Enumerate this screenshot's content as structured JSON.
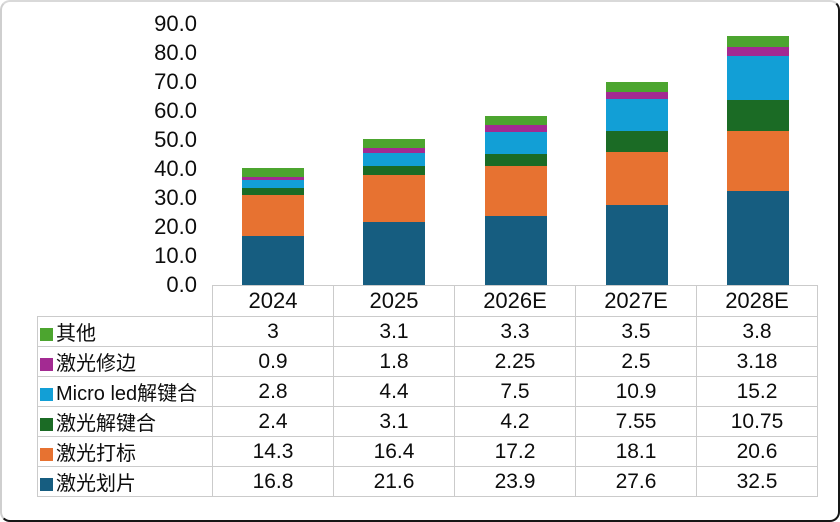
{
  "chart_data": {
    "type": "bar",
    "stacked": true,
    "categories": [
      "2024",
      "2025",
      "2026E",
      "2027E",
      "2028E"
    ],
    "series": [
      {
        "name": "激光划片",
        "color": "#165d80",
        "values": [
          16.8,
          21.6,
          23.9,
          27.6,
          32.5
        ]
      },
      {
        "name": "激光打标",
        "color": "#e77231",
        "values": [
          14.3,
          16.4,
          17.2,
          18.1,
          20.6
        ]
      },
      {
        "name": "激光解键合",
        "color": "#1b6b25",
        "values": [
          2.4,
          3.1,
          4.2,
          7.55,
          10.75
        ]
      },
      {
        "name": "Micro led解键合",
        "color": "#129fd6",
        "values": [
          2.8,
          4.4,
          7.5,
          10.9,
          15.2
        ]
      },
      {
        "name": "激光修边",
        "color": "#a32a92",
        "values": [
          0.9,
          1.8,
          2.25,
          2.5,
          3.18
        ]
      },
      {
        "name": "其他",
        "color": "#4ca52f",
        "values": [
          3,
          3.1,
          3.3,
          3.5,
          3.8
        ]
      }
    ],
    "title": "",
    "xlabel": "",
    "ylabel": "",
    "ylim": [
      0,
      90
    ],
    "ytick_step": 10,
    "ytick_labels": [
      "0.0",
      "10.0",
      "20.0",
      "30.0",
      "40.0",
      "50.0",
      "60.0",
      "70.0",
      "80.0",
      "90.0"
    ],
    "grid": false,
    "legend_position": "table-below-left"
  },
  "table": {
    "header": [
      "2024",
      "2025",
      "2026E",
      "2027E",
      "2028E"
    ],
    "rows": [
      {
        "label": "其他",
        "color": "#4ca52f",
        "values": [
          "3",
          "3.1",
          "3.3",
          "3.5",
          "3.8"
        ]
      },
      {
        "label": "激光修边",
        "color": "#a32a92",
        "values": [
          "0.9",
          "1.8",
          "2.25",
          "2.5",
          "3.18"
        ]
      },
      {
        "label": "Micro led解键合",
        "color": "#129fd6",
        "values": [
          "2.8",
          "4.4",
          "7.5",
          "10.9",
          "15.2"
        ]
      },
      {
        "label": "激光解键合",
        "color": "#1b6b25",
        "values": [
          "2.4",
          "3.1",
          "4.2",
          "7.55",
          "10.75"
        ]
      },
      {
        "label": "激光打标",
        "color": "#e77231",
        "values": [
          "14.3",
          "16.4",
          "17.2",
          "18.1",
          "20.6"
        ]
      },
      {
        "label": "激光划片",
        "color": "#165d80",
        "values": [
          "16.8",
          "21.6",
          "23.9",
          "27.6",
          "32.5"
        ]
      }
    ]
  },
  "colors": {
    "border_dark": "#161616",
    "border_light": "#d9d9d9",
    "table_grid": "#cbcbcb",
    "text": "#0d0d0d"
  }
}
